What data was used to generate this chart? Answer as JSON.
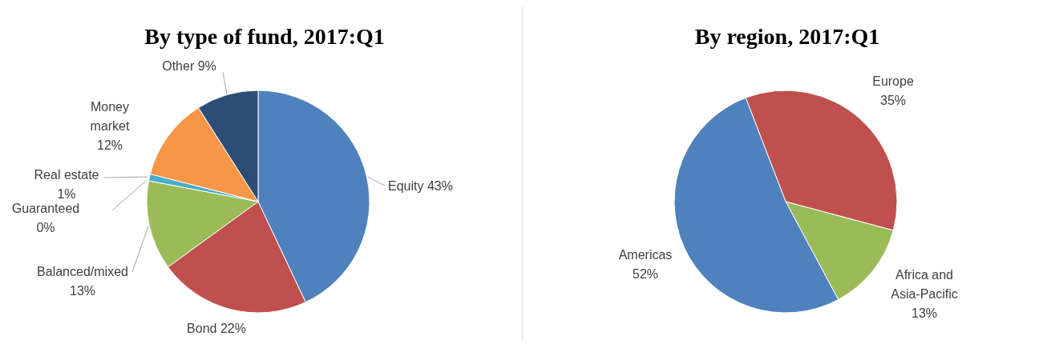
{
  "chart_data": [
    {
      "type": "pie",
      "title": "By type of fund, 2017:Q1",
      "categories": [
        "Equity",
        "Bond",
        "Balanced/mixed",
        "Guaranteed",
        "Real estate",
        "Money market",
        "Other"
      ],
      "values": [
        43,
        22,
        13,
        0,
        1,
        12,
        9
      ],
      "colors": [
        "#4f81bd",
        "#c0504d",
        "#9bbb59",
        "#8064a2",
        "#4bacc6",
        "#f79646",
        "#2c4d75"
      ],
      "value_labels": [
        "43%",
        "22%",
        "13%",
        "0%",
        "1%",
        "12%",
        "9%"
      ]
    },
    {
      "type": "pie",
      "title": "By region, 2017:Q1",
      "categories": [
        "Europe",
        "Africa and Asia-Pacific",
        "Americas"
      ],
      "values": [
        35,
        13,
        52
      ],
      "colors": [
        "#c0504d",
        "#9bbb59",
        "#4f81bd"
      ],
      "value_labels": [
        "35%",
        "13%",
        "52%"
      ]
    }
  ]
}
